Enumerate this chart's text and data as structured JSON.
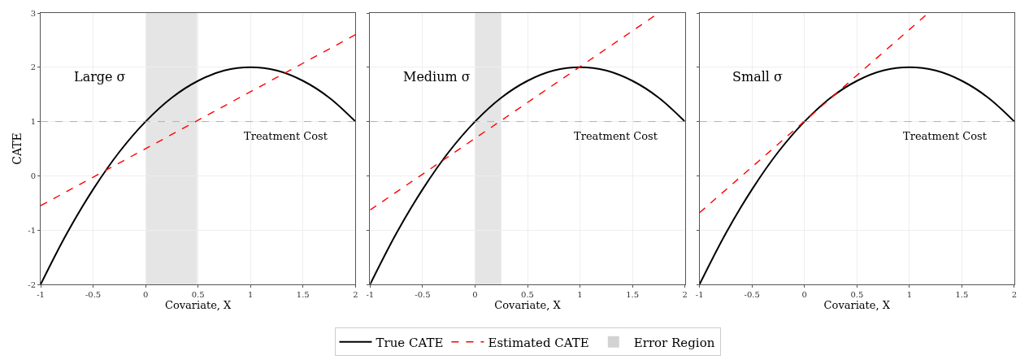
{
  "chart_data": [
    {
      "type": "line",
      "xlabel": "Covariate, X",
      "ylabel": "CATE",
      "annotations": [
        "Large σ"
      ],
      "xlim": [
        -1,
        2
      ],
      "ylim": [
        -2,
        3
      ],
      "xticks": [
        -1,
        -0.5,
        0,
        0.5,
        1,
        1.5,
        2
      ],
      "yticks": [
        -2,
        -1,
        0,
        1,
        2,
        3
      ],
      "grid": true,
      "legend": "bottom",
      "series": [
        {
          "name": "True CATE",
          "color": "#000000",
          "line_style": "solid",
          "x": [
            -1,
            -0.75,
            -0.5,
            -0.25,
            0,
            0.25,
            0.5,
            0.75,
            1,
            1.25,
            1.5,
            1.75,
            2
          ],
          "values": [
            -2,
            -1.06,
            -0.25,
            0.44,
            1,
            1.44,
            1.75,
            1.94,
            2,
            1.94,
            1.75,
            1.44,
            1
          ]
        },
        {
          "name": "Estimated CATE",
          "color": "#ff0000",
          "line_style": "dashed",
          "x": [
            -1,
            2
          ],
          "values": [
            -0.55,
            2.6
          ]
        }
      ],
      "bands": [
        {
          "axis": "x",
          "from": 0,
          "to": 0.49,
          "label": "Error Region",
          "color": "#d3d3d3"
        }
      ],
      "ref_lines": [
        {
          "axis": "y",
          "value": 1,
          "label": "Treatment Cost",
          "color": "#a0a0a0",
          "line_style": "dashed"
        }
      ]
    },
    {
      "type": "line",
      "xlabel": "Covariate, X",
      "annotations": [
        "Medium σ"
      ],
      "xlim": [
        -1,
        2
      ],
      "ylim": [
        -2,
        3
      ],
      "xticks": [
        -1,
        -0.5,
        0,
        0.5,
        1,
        1.5,
        2
      ],
      "yticks": [
        -2,
        -1,
        0,
        1,
        2,
        3
      ],
      "tick_labels": "x",
      "grid": true,
      "series": [
        {
          "color": "#000000",
          "line_style": "solid",
          "x": [
            -1,
            -0.75,
            -0.5,
            -0.25,
            0,
            0.25,
            0.5,
            0.75,
            1,
            1.25,
            1.5,
            1.75,
            2
          ],
          "values": [
            -2,
            -1.06,
            -0.25,
            0.44,
            1,
            1.44,
            1.75,
            1.94,
            2,
            1.94,
            1.75,
            1.44,
            1
          ]
        },
        {
          "color": "#ff0000",
          "line_style": "dashed",
          "x": [
            -1,
            1.75
          ],
          "values": [
            -0.63,
            3
          ]
        }
      ],
      "bands": [
        {
          "axis": "x",
          "from": 0,
          "to": 0.25,
          "color": "#d3d3d3"
        }
      ],
      "ref_lines": [
        {
          "axis": "y",
          "value": 1,
          "label": "Treatment Cost",
          "color": "#a0a0a0",
          "line_style": "dashed"
        }
      ]
    },
    {
      "type": "line",
      "xlabel": "Covariate, X",
      "annotations": [
        "Small σ"
      ],
      "xlim": [
        -1,
        2
      ],
      "ylim": [
        -2,
        3
      ],
      "xticks": [
        -1,
        -0.5,
        0,
        0.5,
        1,
        1.5,
        2
      ],
      "yticks": [
        -2,
        -1,
        0,
        1,
        2,
        3
      ],
      "tick_labels": "x",
      "grid": true,
      "series": [
        {
          "color": "#000000",
          "line_style": "solid",
          "x": [
            -1,
            -0.75,
            -0.5,
            -0.25,
            0,
            0.25,
            0.5,
            0.75,
            1,
            1.25,
            1.5,
            1.75,
            2
          ],
          "values": [
            -2,
            -1.06,
            -0.25,
            0.44,
            1,
            1.44,
            1.75,
            1.94,
            2,
            1.94,
            1.75,
            1.44,
            1
          ]
        },
        {
          "color": "#ff0000",
          "line_style": "dashed",
          "x": [
            -1,
            1.18
          ],
          "values": [
            -0.68,
            3
          ]
        }
      ],
      "ref_lines": [
        {
          "axis": "y",
          "value": 1,
          "label": "Treatment Cost",
          "color": "#a0a0a0",
          "line_style": "dashed"
        }
      ]
    }
  ]
}
